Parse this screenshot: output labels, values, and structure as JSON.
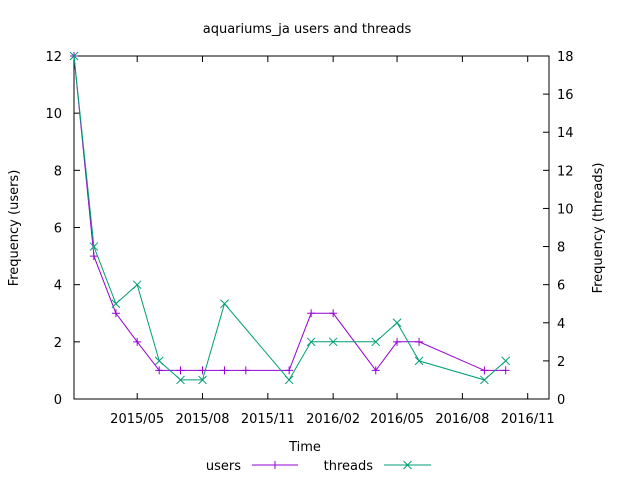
{
  "chart_data": {
    "type": "line",
    "title": "aquariums_ja users and threads",
    "xlabel": "Time",
    "ylabel_left": "Frequency (users)",
    "ylabel_right": "Frequency (threads)",
    "x_range": [
      "2015-02-01",
      "2016-12-01"
    ],
    "x_ticks": [
      "2015/05",
      "2015/08",
      "2015/11",
      "2016/02",
      "2016/05",
      "2016/08",
      "2016/11"
    ],
    "y_left_range": [
      0,
      12
    ],
    "y_left_ticks": [
      "0",
      "2",
      "4",
      "6",
      "8",
      "10",
      "12"
    ],
    "y_right_range": [
      0,
      18
    ],
    "y_right_ticks": [
      "0",
      "2",
      "4",
      "6",
      "8",
      "10",
      "12",
      "14",
      "16",
      "18"
    ],
    "grid": false,
    "legend_position": "bottom-center",
    "series": [
      {
        "name": "users",
        "axis": "left",
        "color": "#9400d3",
        "marker": "plus",
        "x": [
          "2015-02-01",
          "2015-03-01",
          "2015-04-01",
          "2015-05-01",
          "2015-06-01",
          "2015-07-01",
          "2015-08-01",
          "2015-09-01",
          "2015-10-01",
          "2015-12-01",
          "2016-01-01",
          "2016-02-01",
          "2016-04-01",
          "2016-05-01",
          "2016-06-01",
          "2016-09-01",
          "2016-10-01"
        ],
        "values": [
          12,
          5,
          3,
          2,
          1,
          1,
          1,
          1,
          1,
          1,
          3,
          3,
          1,
          2,
          2,
          1,
          1
        ]
      },
      {
        "name": "threads",
        "axis": "right",
        "color": "#009e73",
        "marker": "cross",
        "x": [
          "2015-02-01",
          "2015-03-01",
          "2015-04-01",
          "2015-05-01",
          "2015-06-01",
          "2015-07-01",
          "2015-08-01",
          "2015-09-01",
          "2015-12-01",
          "2016-01-01",
          "2016-02-01",
          "2016-04-01",
          "2016-05-01",
          "2016-06-01",
          "2016-09-01",
          "2016-10-01"
        ],
        "values": [
          18,
          8,
          5,
          6,
          2,
          1,
          1,
          5,
          1,
          3,
          3,
          3,
          4,
          2,
          1,
          2
        ]
      }
    ]
  }
}
